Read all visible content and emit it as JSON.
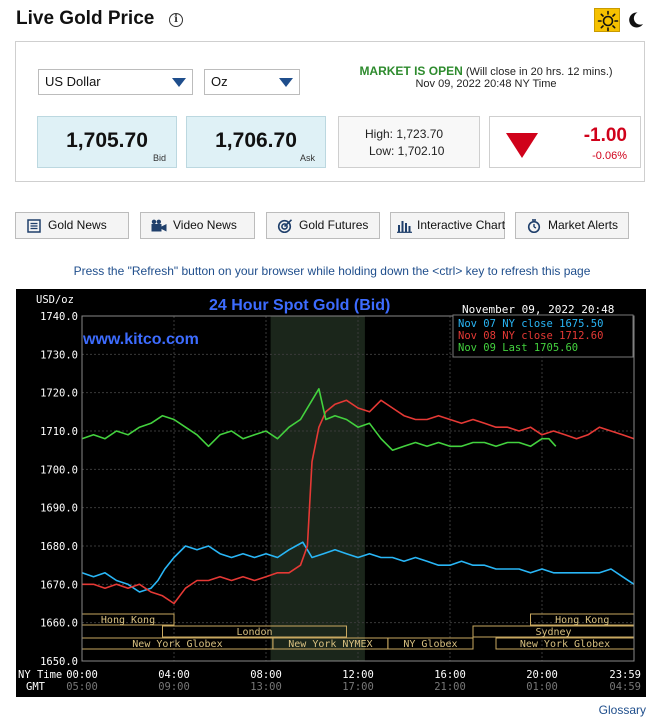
{
  "header": {
    "title": "Live Gold Price",
    "info_glyph": "i",
    "theme": {
      "active": "light",
      "icons": [
        "sun-icon",
        "moon-icon"
      ]
    }
  },
  "quote": {
    "currency": "US Dollar",
    "unit": "Oz",
    "market_status": "MARKET IS OPEN",
    "market_close_note": "(Will close in 20 hrs. 12 mins.)",
    "timestamp": "Nov 09, 2022 20:48 NY Time",
    "bid": "1,705.70",
    "bid_label": "Bid",
    "ask": "1,706.70",
    "ask_label": "Ask",
    "high": "High: 1,723.70",
    "low": "Low: 1,702.10",
    "change": "-1.00",
    "change_pct": "-0.06%",
    "colors": {
      "up": "#2e8b2e",
      "down": "#d0021b"
    }
  },
  "nav_buttons": [
    {
      "label": "Gold News",
      "icon": "newspaper-icon"
    },
    {
      "label": "Video News",
      "icon": "video-camera-icon"
    },
    {
      "label": "Gold Futures",
      "icon": "target-icon"
    },
    {
      "label": "Interactive Chart",
      "icon": "bar-chart-icon"
    },
    {
      "label": "Market Alerts",
      "icon": "alarm-clock-icon"
    }
  ],
  "refresh_note": "Press the \"Refresh\" button on your browser while holding down the <ctrl> key to refresh this page",
  "glossary_link": "Glossary",
  "chart_data": {
    "type": "line",
    "title": "24 Hour Spot Gold (Bid)",
    "ylabel": "USD/oz",
    "watermark": "www.kitco.com",
    "timestamp": "November 09, 2022 20:48",
    "ylim": [
      1650,
      1740
    ],
    "yticks": [
      "1740.0",
      "1730.0",
      "1720.0",
      "1710.0",
      "1700.0",
      "1690.0",
      "1680.0",
      "1670.0",
      "1660.0",
      "1650.0"
    ],
    "ytick_values": [
      1740,
      1730,
      1720,
      1710,
      1700,
      1690,
      1680,
      1670,
      1660,
      1650
    ],
    "x_ny_label": "NY Time",
    "x_gmt_label": "GMT",
    "x_ny_ticks": [
      "00:00",
      "04:00",
      "08:00",
      "12:00",
      "16:00",
      "20:00",
      "23:59"
    ],
    "x_gmt_ticks": [
      "05:00",
      "09:00",
      "13:00",
      "17:00",
      "21:00",
      "01:00",
      "04:59"
    ],
    "x_tick_hours": [
      0,
      4,
      8,
      12,
      16,
      20,
      24
    ],
    "shaded_hours": [
      8.2,
      12.3
    ],
    "legend": [
      {
        "label": "Nov 07 NY close 1675.50",
        "color": "#29b6f6"
      },
      {
        "label": "Nov 08 NY close 1712.60",
        "color": "#e53935"
      },
      {
        "label": "Nov 09 Last 1705.60",
        "color": "#43d13e"
      }
    ],
    "sessions": [
      {
        "label": "Hong Kong",
        "start": 0,
        "end": 4
      },
      {
        "label": "Hong Kong",
        "start": 19.5,
        "end": 24
      },
      {
        "label": "London",
        "start": 3.5,
        "end": 11.5
      },
      {
        "label": "Sydney",
        "start": 17,
        "end": 24
      },
      {
        "label": "New York Globex",
        "start": 0,
        "end": 8.3
      },
      {
        "label": "New York NYMEX",
        "start": 8.3,
        "end": 13.3
      },
      {
        "label": "NY Globex",
        "start": 13.3,
        "end": 17
      },
      {
        "label": "New York Globex",
        "start": 18,
        "end": 24
      }
    ],
    "series": [
      {
        "name": "Nov 07",
        "color": "#29b6f6",
        "x": [
          0,
          0.5,
          1,
          1.5,
          2,
          2.5,
          3,
          3.3,
          3.6,
          4,
          4.5,
          5,
          5.5,
          6,
          6.5,
          7,
          7.5,
          8,
          8.5,
          9,
          9.3,
          9.6,
          10,
          10.5,
          11,
          11.5,
          12,
          12.5,
          13,
          13.5,
          14,
          14.5,
          15,
          15.5,
          16,
          16.5,
          17,
          17.5,
          18,
          18.5,
          19,
          19.5,
          20,
          20.5,
          21,
          21.5,
          22,
          22.5,
          23,
          23.5,
          24
        ],
        "y": [
          1673,
          1672,
          1673,
          1671,
          1670,
          1668,
          1669,
          1671,
          1674,
          1677,
          1680,
          1679,
          1680,
          1678,
          1677,
          1678,
          1677,
          1678,
          1677,
          1679,
          1680,
          1681,
          1677,
          1678,
          1679,
          1678,
          1677,
          1678,
          1677,
          1677,
          1676,
          1677,
          1676,
          1675,
          1675,
          1676,
          1675,
          1675,
          1674,
          1674,
          1674,
          1673,
          1674,
          1673,
          1673,
          1673,
          1673,
          1673,
          1674,
          1672,
          1670
        ]
      },
      {
        "name": "Nov 08",
        "color": "#e53935",
        "x": [
          0,
          0.5,
          1,
          1.5,
          2,
          2.5,
          3,
          3.5,
          4,
          4.5,
          5,
          5.5,
          6,
          6.5,
          7,
          7.5,
          8,
          8.5,
          9,
          9.5,
          9.8,
          10,
          10.3,
          10.6,
          11,
          11.5,
          12,
          12.5,
          13,
          13.5,
          14,
          14.5,
          15,
          15.5,
          16,
          16.5,
          17,
          17.5,
          18,
          18.5,
          19,
          19.5,
          20,
          20.5,
          21,
          21.5,
          22,
          22.5,
          23,
          23.5,
          24
        ],
        "y": [
          1670,
          1670,
          1669,
          1670,
          1669,
          1670,
          1668,
          1667,
          1665,
          1669,
          1671,
          1671,
          1672,
          1671,
          1672,
          1671,
          1672,
          1673,
          1673,
          1675,
          1680,
          1702,
          1711,
          1715,
          1717,
          1718,
          1716,
          1715,
          1718,
          1716,
          1714,
          1713,
          1713,
          1714,
          1713,
          1712,
          1713,
          1712,
          1711,
          1711,
          1710,
          1711,
          1709,
          1710,
          1709,
          1708,
          1709,
          1711,
          1710,
          1709,
          1708
        ]
      },
      {
        "name": "Nov 09",
        "color": "#43d13e",
        "x": [
          0,
          0.5,
          1,
          1.5,
          2,
          2.5,
          3,
          3.5,
          4,
          4.5,
          5,
          5.5,
          6,
          6.5,
          7,
          7.5,
          8,
          8.5,
          9,
          9.5,
          10,
          10.3,
          10.6,
          11,
          11.5,
          12,
          12.5,
          13,
          13.5,
          14,
          14.5,
          15,
          15.5,
          16,
          16.5,
          17,
          17.5,
          18,
          18.5,
          19,
          19.5,
          20,
          20.3,
          20.6
        ],
        "y": [
          1708,
          1709,
          1708,
          1710,
          1709,
          1711,
          1712,
          1714,
          1713,
          1711,
          1709,
          1706,
          1709,
          1710,
          1708,
          1709,
          1710,
          1708,
          1711,
          1713,
          1718,
          1721,
          1713,
          1714,
          1713,
          1711,
          1712,
          1708,
          1705,
          1706,
          1707,
          1706,
          1707,
          1706,
          1706,
          1707,
          1707,
          1706,
          1707,
          1707,
          1706,
          1708,
          1708,
          1706
        ]
      }
    ]
  }
}
